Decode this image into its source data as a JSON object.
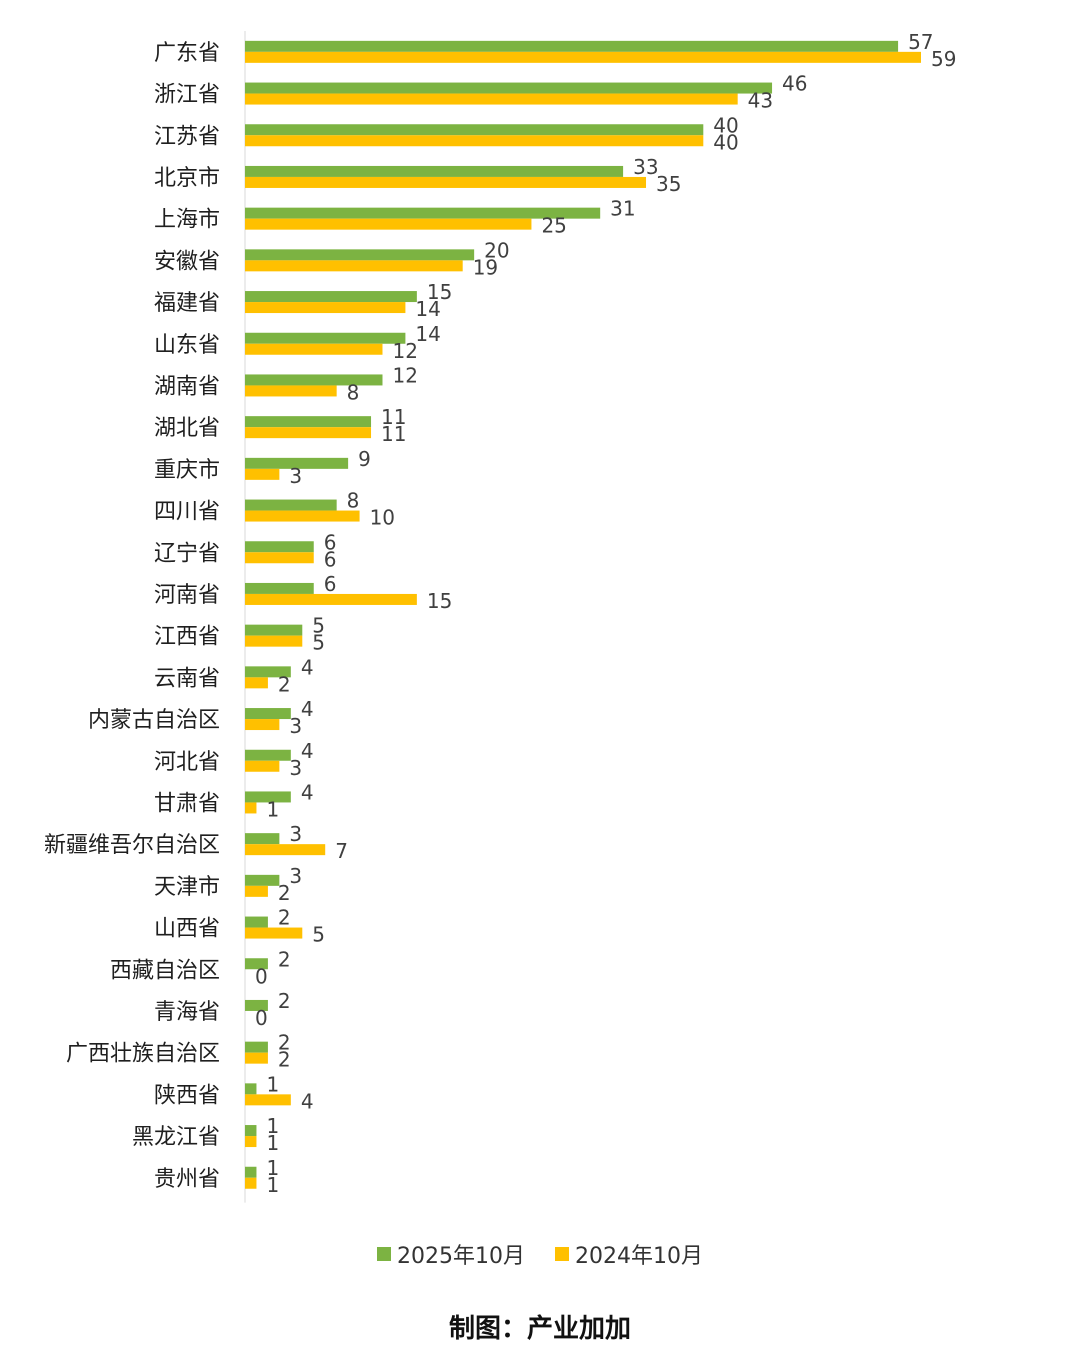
{
  "chart_data": {
    "type": "bar",
    "orientation": "horizontal",
    "categories": [
      "广东省",
      "浙江省",
      "江苏省",
      "北京市",
      "上海市",
      "安徽省",
      "福建省",
      "山东省",
      "湖南省",
      "湖北省",
      "重庆市",
      "四川省",
      "辽宁省",
      "河南省",
      "江西省",
      "云南省",
      "内蒙古自治区",
      "河北省",
      "甘肃省",
      "新疆维吾尔自治区",
      "天津市",
      "山西省",
      "西藏自治区",
      "青海省",
      "广西壮族自治区",
      "陕西省",
      "黑龙江省",
      "贵州省"
    ],
    "series": [
      {
        "name": "2025年10月",
        "color": "#7cb342",
        "values": [
          57,
          46,
          40,
          33,
          31,
          20,
          15,
          14,
          12,
          11,
          9,
          8,
          6,
          6,
          5,
          4,
          4,
          4,
          4,
          3,
          3,
          2,
          2,
          2,
          2,
          1,
          1,
          1
        ]
      },
      {
        "name": "2024年10月",
        "color": "#ffc000",
        "values": [
          59,
          43,
          40,
          35,
          25,
          19,
          14,
          12,
          8,
          11,
          3,
          10,
          6,
          15,
          5,
          2,
          3,
          3,
          1,
          7,
          2,
          5,
          0,
          0,
          2,
          4,
          1,
          1
        ]
      }
    ],
    "xlim": [
      0,
      60
    ],
    "grid": false,
    "legend_position": "bottom"
  },
  "credit": "制图：产业加加"
}
